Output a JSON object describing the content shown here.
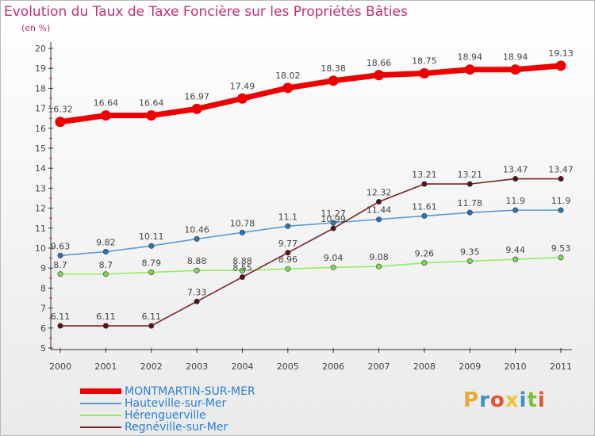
{
  "title": "Evolution du Taux de Taxe Foncière sur les Propriétés Bâties",
  "unit_label": "(en %)",
  "logo": {
    "text": "ProXiti",
    "letters": [
      "P",
      "r",
      "o",
      "x",
      "i",
      "t",
      "i"
    ],
    "colors": [
      "#e8a93a",
      "#3b8fd0",
      "#e3542f",
      "#f0c330",
      "#3b8fd0",
      "#7bbf3c",
      "#e3542f"
    ]
  },
  "chart_data": {
    "type": "line",
    "title": "Evolution du Taux de Taxe Foncière sur les Propriétés Bâties",
    "ylabel": "(en %)",
    "xlabel": "",
    "ylim": [
      5,
      20
    ],
    "grid": false,
    "legend": "bottom-left",
    "categories": [
      "2000",
      "2001",
      "2002",
      "2003",
      "2004",
      "2005",
      "2006",
      "2007",
      "2008",
      "2009",
      "2010",
      "2011"
    ],
    "y_ticks": [
      "5",
      "6",
      "7",
      "8",
      "9",
      "10",
      "11",
      "12",
      "13",
      "14",
      "15",
      "16",
      "17",
      "18",
      "19",
      "20"
    ],
    "series": [
      {
        "name": "MONTMARTIN-SUR-MER",
        "color": "#ee0000",
        "marker_color": "#ee0000",
        "values": [
          16.32,
          16.64,
          16.64,
          16.97,
          17.49,
          18.02,
          18.38,
          18.66,
          18.75,
          18.94,
          18.94,
          19.13
        ],
        "labels": [
          "16.32",
          "16.64",
          "16.64",
          "16.97",
          "17.49",
          "18.02",
          "18.38",
          "18.66",
          "18.75",
          "18.94",
          "18.94",
          "19.13"
        ]
      },
      {
        "name": "Hauteville-sur-Mer",
        "color": "#5b9bd5",
        "marker_color": "#2e75b6",
        "values": [
          9.63,
          9.82,
          10.11,
          10.46,
          10.78,
          11.1,
          11.27,
          11.44,
          11.61,
          11.78,
          11.9,
          11.9
        ],
        "labels": [
          "9.63",
          "9.82",
          "10.11",
          "10.46",
          "10.78",
          "11.1",
          "11.27",
          "11.44",
          "11.61",
          "11.78",
          "11.9",
          "11.9"
        ]
      },
      {
        "name": "Hérenguerville",
        "color": "#90ee60",
        "marker_color": "#7ed957",
        "values": [
          8.7,
          8.7,
          8.79,
          8.88,
          8.88,
          8.96,
          9.04,
          9.08,
          9.26,
          9.35,
          9.44,
          9.53
        ],
        "labels": [
          "8.7",
          "8.7",
          "8.79",
          "8.88",
          "8.88",
          "8.96",
          "9.04",
          "9.08",
          "9.26",
          "9.35",
          "9.44",
          "9.53"
        ]
      },
      {
        "name": "Regnéville-sur-Mer",
        "color": "#7b2226",
        "marker_color": "#5a1216",
        "values": [
          6.11,
          6.11,
          6.11,
          7.33,
          8.55,
          9.77,
          10.99,
          12.32,
          13.21,
          13.21,
          13.47,
          13.47
        ],
        "labels": [
          "6.11",
          "6.11",
          "6.11",
          "7.33",
          "8.55",
          "9.77",
          "10.99",
          "12.32",
          "13.21",
          "13.21",
          "13.47",
          "13.47"
        ]
      }
    ]
  }
}
